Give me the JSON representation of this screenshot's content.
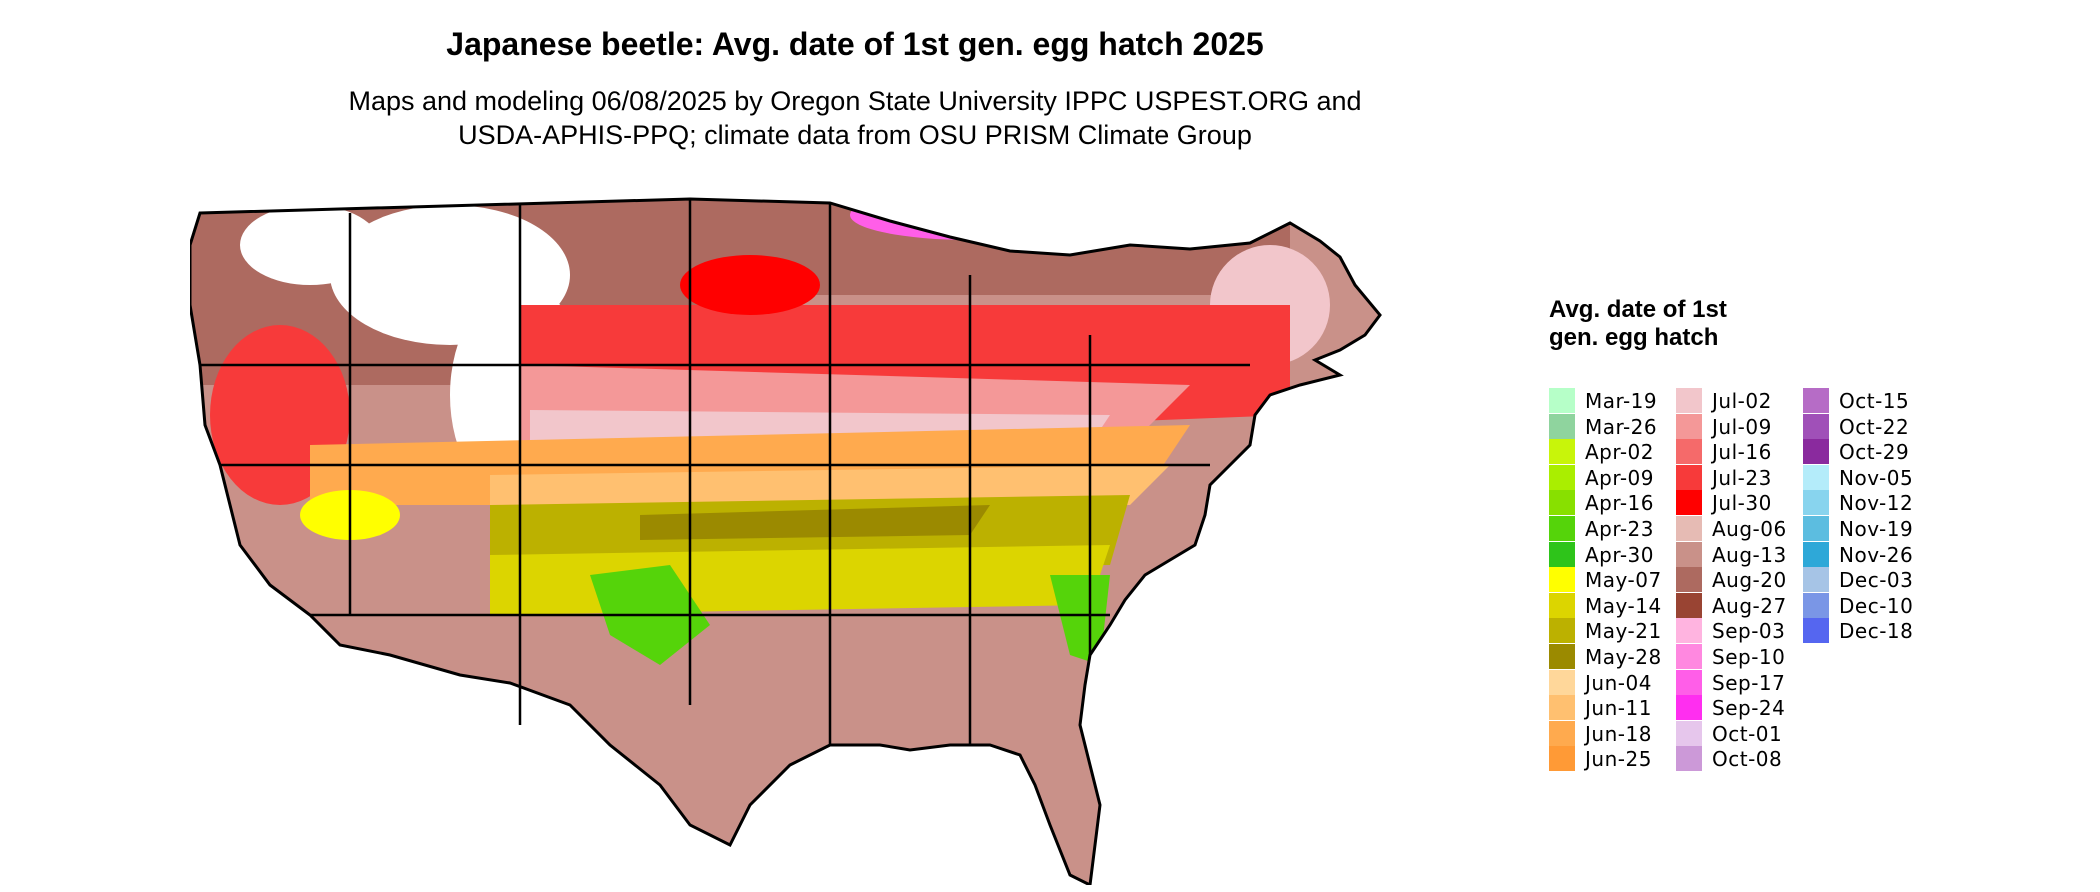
{
  "title": "Japanese beetle: Avg. date of 1st gen. egg hatch 2025",
  "subtitle": [
    "Maps and modeling 06/08/2025 by Oregon State University IPPC USPEST.ORG and",
    "USDA-APHIS-PPQ; climate data from OSU PRISM Climate Group"
  ],
  "map": {
    "region": "Contiguous United States",
    "boundary_color": "#000000"
  },
  "legend": {
    "title": "Avg. date of 1st gen. egg hatch",
    "columns": [
      [
        {
          "label": "Mar-19",
          "color": "#b6ffc8"
        },
        {
          "label": "Mar-26",
          "color": "#8fd49e"
        },
        {
          "label": "Apr-02",
          "color": "#c8f50a"
        },
        {
          "label": "Apr-09",
          "color": "#aaee00"
        },
        {
          "label": "Apr-16",
          "color": "#88e000"
        },
        {
          "label": "Apr-23",
          "color": "#55d40a"
        },
        {
          "label": "Apr-30",
          "color": "#2ec41a"
        },
        {
          "label": "May-07",
          "color": "#ffff00"
        },
        {
          "label": "May-14",
          "color": "#dcd500"
        },
        {
          "label": "May-21",
          "color": "#bcb100"
        },
        {
          "label": "May-28",
          "color": "#9b8a00"
        },
        {
          "label": "Jun-04",
          "color": "#ffd79a"
        },
        {
          "label": "Jun-11",
          "color": "#ffc070"
        },
        {
          "label": "Jun-18",
          "color": "#ffaa4e"
        },
        {
          "label": "Jun-25",
          "color": "#ff9a36"
        }
      ],
      [
        {
          "label": "Jul-02",
          "color": "#f2c6cb"
        },
        {
          "label": "Jul-09",
          "color": "#f49898"
        },
        {
          "label": "Jul-16",
          "color": "#f56a6a"
        },
        {
          "label": "Jul-23",
          "color": "#f73a3a"
        },
        {
          "label": "Jul-30",
          "color": "#ff0000"
        },
        {
          "label": "Aug-06",
          "color": "#e6bbb4"
        },
        {
          "label": "Aug-13",
          "color": "#c99189"
        },
        {
          "label": "Aug-20",
          "color": "#ad6a60"
        },
        {
          "label": "Aug-27",
          "color": "#994433"
        },
        {
          "label": "Sep-03",
          "color": "#ffb4e0"
        },
        {
          "label": "Sep-10",
          "color": "#ff88e0"
        },
        {
          "label": "Sep-17",
          "color": "#ff5ee8"
        },
        {
          "label": "Sep-24",
          "color": "#ff2ef0"
        },
        {
          "label": "Oct-01",
          "color": "#e6c6ec"
        },
        {
          "label": "Oct-08",
          "color": "#cc99d8"
        }
      ],
      [
        {
          "label": "Oct-15",
          "color": "#b66cc6"
        },
        {
          "label": "Oct-22",
          "color": "#a050b8"
        },
        {
          "label": "Oct-29",
          "color": "#8a2a9e"
        },
        {
          "label": "Nov-05",
          "color": "#b4ecfa"
        },
        {
          "label": "Nov-12",
          "color": "#88d4ee"
        },
        {
          "label": "Nov-19",
          "color": "#5cbde0"
        },
        {
          "label": "Nov-26",
          "color": "#2ea8d8"
        },
        {
          "label": "Dec-03",
          "color": "#a6c4e6"
        },
        {
          "label": "Dec-10",
          "color": "#7a96e6"
        },
        {
          "label": "Dec-18",
          "color": "#5566f0"
        }
      ]
    ]
  }
}
